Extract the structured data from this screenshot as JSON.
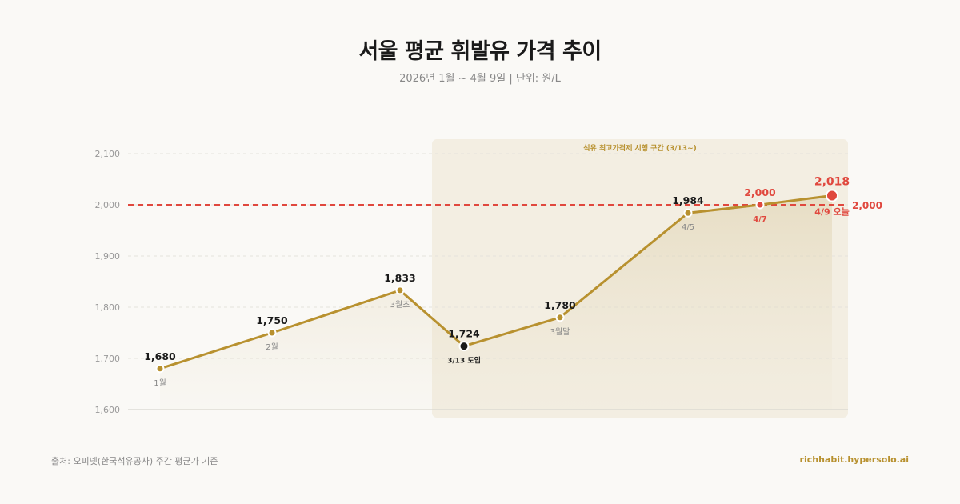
{
  "header": {
    "title": "서울 평균 휘발유 가격 추이",
    "subtitle": "2026년 1월 ~ 4월 9일 | 단위: 원/L"
  },
  "footer": {
    "source": "출처: 오피넷(한국석유공사) 주간 평균가 기준",
    "site": "richhabit.hypersolo.ai"
  },
  "colors": {
    "line": "#b8912f",
    "reference": "#e0483e",
    "highlight_region": "#f3eee2",
    "text_dark": "#1a1a1a",
    "text_muted": "#888888"
  },
  "chart_data": {
    "type": "line",
    "title": "서울 평균 휘발유 가격 추이",
    "subtitle": "2026년 1월 ~ 4월 9일 | 단위: 원/L",
    "ylim": [
      1600,
      2100
    ],
    "yticks": [
      1600,
      1700,
      1800,
      1900,
      2000,
      2100
    ],
    "ytick_labels": [
      "1,600",
      "1,700",
      "1,800",
      "1,900",
      "2,000",
      "2,100"
    ],
    "grid": true,
    "points": [
      {
        "label": "1월",
        "value": 1680,
        "value_label": "1,680",
        "style": "normal"
      },
      {
        "label": "2월",
        "value": 1750,
        "value_label": "1,750",
        "style": "normal"
      },
      {
        "label": "3월초",
        "value": 1833,
        "value_label": "1,833",
        "style": "normal"
      },
      {
        "label": "3/13 도입",
        "value": 1724,
        "value_label": "1,724",
        "style": "event"
      },
      {
        "label": "3월말",
        "value": 1780,
        "value_label": "1,780",
        "style": "normal"
      },
      {
        "label": "4/5",
        "value": 1984,
        "value_label": "1,984",
        "style": "normal"
      },
      {
        "label": "4/7",
        "value": 2000,
        "value_label": "2,000",
        "style": "alert"
      },
      {
        "label": "4/9 오늘",
        "value": 2018,
        "value_label": "2,018",
        "style": "today"
      }
    ],
    "highlight_region": {
      "label": "석유 최고가격제 시행 구간 (3/13~)",
      "start_index": 3
    },
    "reference_line": {
      "value": 2000,
      "label": "2,000"
    }
  }
}
